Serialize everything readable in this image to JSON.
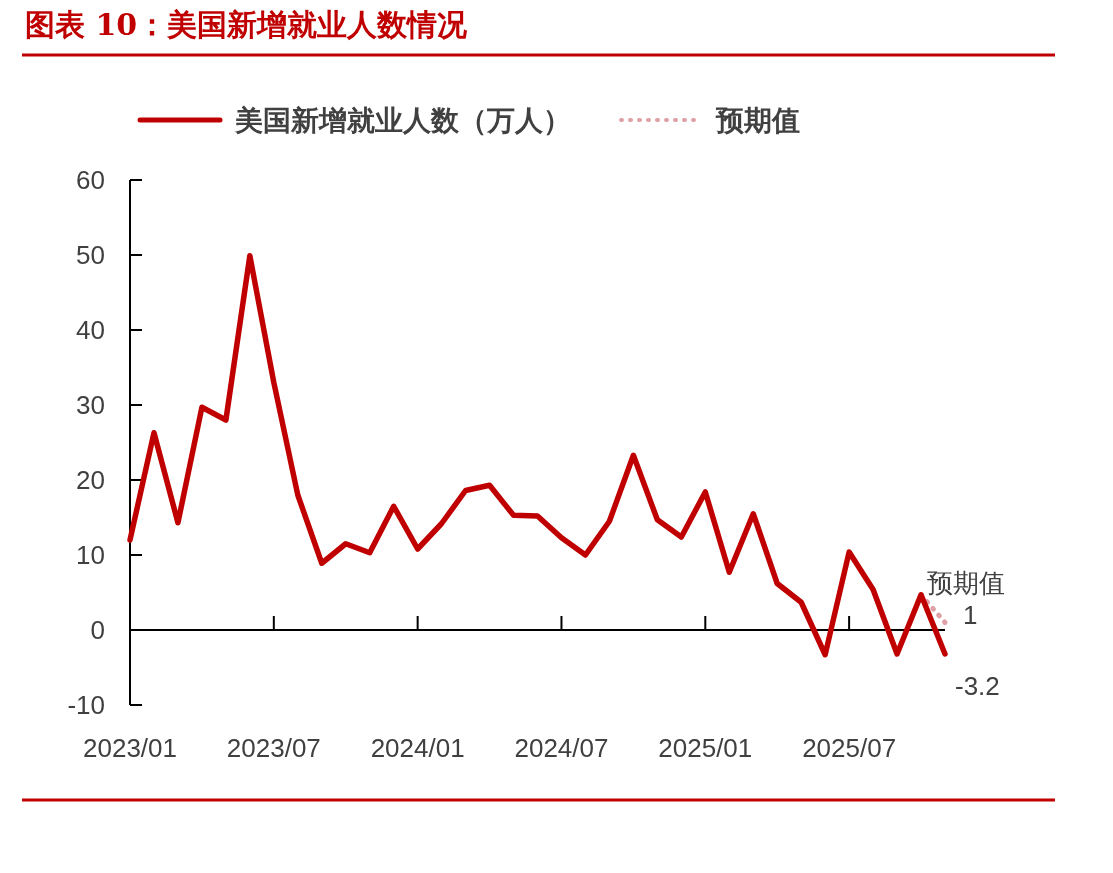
{
  "chart_data": {
    "type": "line",
    "title": "图表 10：美国新增就业人数情况",
    "x": [
      "2023-01",
      "2023-02",
      "2023-03",
      "2023-04",
      "2023-05",
      "2023-06",
      "2023-07",
      "2023-08",
      "2023-09",
      "2023-10",
      "2023-11",
      "2023-12",
      "2024-01",
      "2024-02",
      "2024-03",
      "2024-04",
      "2024-05",
      "2024-06",
      "2024-07",
      "2024-08",
      "2024-09",
      "2024-10",
      "2024-11",
      "2024-12",
      "2025-01",
      "2025-02",
      "2025-03",
      "2025-04",
      "2025-05",
      "2025-06",
      "2025-07",
      "2025-08",
      "2025-09",
      "2025-10",
      "2025-11"
    ],
    "series": [
      {
        "name": "美国新增就业人数（万人）",
        "color": "#c00000",
        "line_style": "solid",
        "values": [
          12,
          26.3,
          14.3,
          29.7,
          28,
          49.9,
          33,
          18,
          8.9,
          11.5,
          10.3,
          16.5,
          10.8,
          14.2,
          18.6,
          19.3,
          15.3,
          15.2,
          12.3,
          10,
          14.5,
          23.3,
          14.7,
          12.4,
          18.4,
          7.7,
          15.5,
          6.2,
          3.7,
          -3.3,
          10.4,
          5.4,
          -3.2,
          4.7,
          -3.2
        ]
      },
      {
        "name": "预期值",
        "color": "#e0a0a8",
        "line_style": "dotted",
        "x": [
          "2025-10",
          "2025-11"
        ],
        "values": [
          4.7,
          1
        ]
      }
    ],
    "xlim": [
      "2023-01",
      "2025-11"
    ],
    "xticks": [
      {
        "value": "2023-01",
        "label": "2023/01"
      },
      {
        "value": "2023-07",
        "label": "2023/07"
      },
      {
        "value": "2024-01",
        "label": "2024/01"
      },
      {
        "value": "2024-07",
        "label": "2024/07"
      },
      {
        "value": "2025-01",
        "label": "2025/01"
      },
      {
        "value": "2025-07",
        "label": "2025/07"
      }
    ],
    "ylim": [
      -10,
      60
    ],
    "yticks": [
      -10,
      0,
      10,
      20,
      30,
      40,
      50,
      60
    ],
    "legend": "top",
    "annotations": [
      {
        "text": "预期值",
        "x": "2025-11",
        "y": 1
      },
      {
        "text": "1",
        "x": "2025-11",
        "y": 1
      },
      {
        "text": "-3.2",
        "x": "2025-11",
        "y": -3.2
      }
    ]
  }
}
